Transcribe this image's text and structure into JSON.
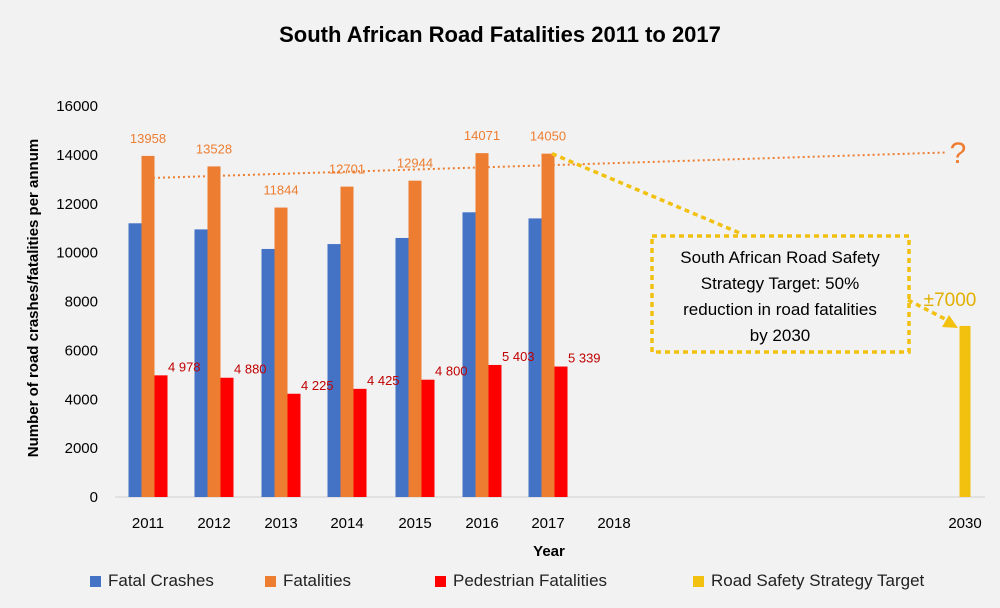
{
  "chart_data": {
    "type": "bar",
    "title": "South African Road Fatalities 2011 to 2017",
    "xlabel": "Year",
    "ylabel": "Number of road crashes/fatalities per annum",
    "ylim": [
      0,
      16000
    ],
    "yticks": [
      "0",
      "2000",
      "4000",
      "6000",
      "8000",
      "10000",
      "12000",
      "14000",
      "16000"
    ],
    "categories": [
      "2011",
      "2012",
      "2013",
      "2014",
      "2015",
      "2016",
      "2017",
      "2018",
      "2030"
    ],
    "grid": false,
    "legend_position": "bottom",
    "series": [
      {
        "name": "Fatal Crashes",
        "color": "#4472c4",
        "values": [
          11200,
          10950,
          10150,
          10350,
          10600,
          11650,
          11400,
          null,
          null
        ],
        "labels": [
          "",
          "",
          "",
          "",
          "",
          "",
          "",
          "",
          ""
        ]
      },
      {
        "name": "Fatalities",
        "color": "#ed7d31",
        "values": [
          13958,
          13528,
          11844,
          12701,
          12944,
          14071,
          14050,
          null,
          null
        ],
        "labels": [
          "13958",
          "13528",
          "11844",
          "12701",
          "12944",
          "14071",
          "14050",
          "",
          ""
        ]
      },
      {
        "name": "Pedestrian Fatalities",
        "color": "#ff0000",
        "label_color": "#c00000",
        "values": [
          4978,
          4880,
          4225,
          4425,
          4800,
          5403,
          5339,
          null,
          null
        ],
        "labels": [
          "4 978",
          "4 880",
          "4 225",
          "4 425",
          "4 800",
          "5 403",
          "5 339",
          "",
          ""
        ]
      },
      {
        "name": "Road Safety Strategy Target",
        "color": "#f2c10f",
        "values": [
          null,
          null,
          null,
          null,
          null,
          null,
          null,
          null,
          7000
        ],
        "labels": [
          "",
          "",
          "",
          "",
          "",
          "",
          "",
          "",
          "±7000"
        ]
      }
    ],
    "trendline": {
      "series": "Fatalities",
      "from": {
        "x": "2011",
        "y": 13050
      },
      "to": {
        "x": "2030",
        "y": 14100
      },
      "color": "#ed7d31"
    },
    "annotations": {
      "question_mark": "?",
      "target_box_lines": [
        "South African Road Safety",
        "Strategy Target:  50%",
        "reduction in road fatalities",
        "by 2030"
      ],
      "target_color": "#f2c10f",
      "target_label_color": "#e2b000"
    }
  }
}
